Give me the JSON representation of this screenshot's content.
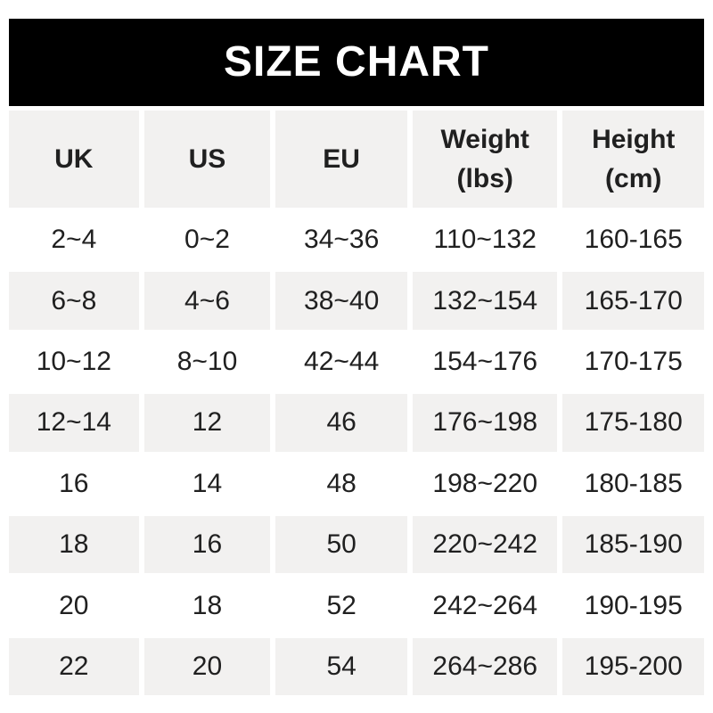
{
  "chart_data": {
    "type": "table",
    "title": "SIZE CHART",
    "columns": [
      {
        "label": "UK",
        "sublabel": ""
      },
      {
        "label": "US",
        "sublabel": ""
      },
      {
        "label": "EU",
        "sublabel": ""
      },
      {
        "label": "Weight",
        "sublabel": "(lbs)"
      },
      {
        "label": "Height",
        "sublabel": "(cm)"
      }
    ],
    "rows": [
      [
        "2~4",
        "0~2",
        "34~36",
        "110~132",
        "160-165"
      ],
      [
        "6~8",
        "4~6",
        "38~40",
        "132~154",
        "165-170"
      ],
      [
        "10~12",
        "8~10",
        "42~44",
        "154~176",
        "170-175"
      ],
      [
        "12~14",
        "12",
        "46",
        "176~198",
        "175-180"
      ],
      [
        "16",
        "14",
        "48",
        "198~220",
        "180-185"
      ],
      [
        "18",
        "16",
        "50",
        "220~242",
        "185-190"
      ],
      [
        "20",
        "18",
        "52",
        "242~264",
        "190-195"
      ],
      [
        "22",
        "20",
        "54",
        "264~286",
        "195-200"
      ]
    ]
  },
  "colors": {
    "banner_bg": "#000000",
    "banner_text": "#ffffff",
    "cell_alt_bg": "#f2f1f0",
    "cell_text": "#202020",
    "page_bg": "#ffffff"
  }
}
